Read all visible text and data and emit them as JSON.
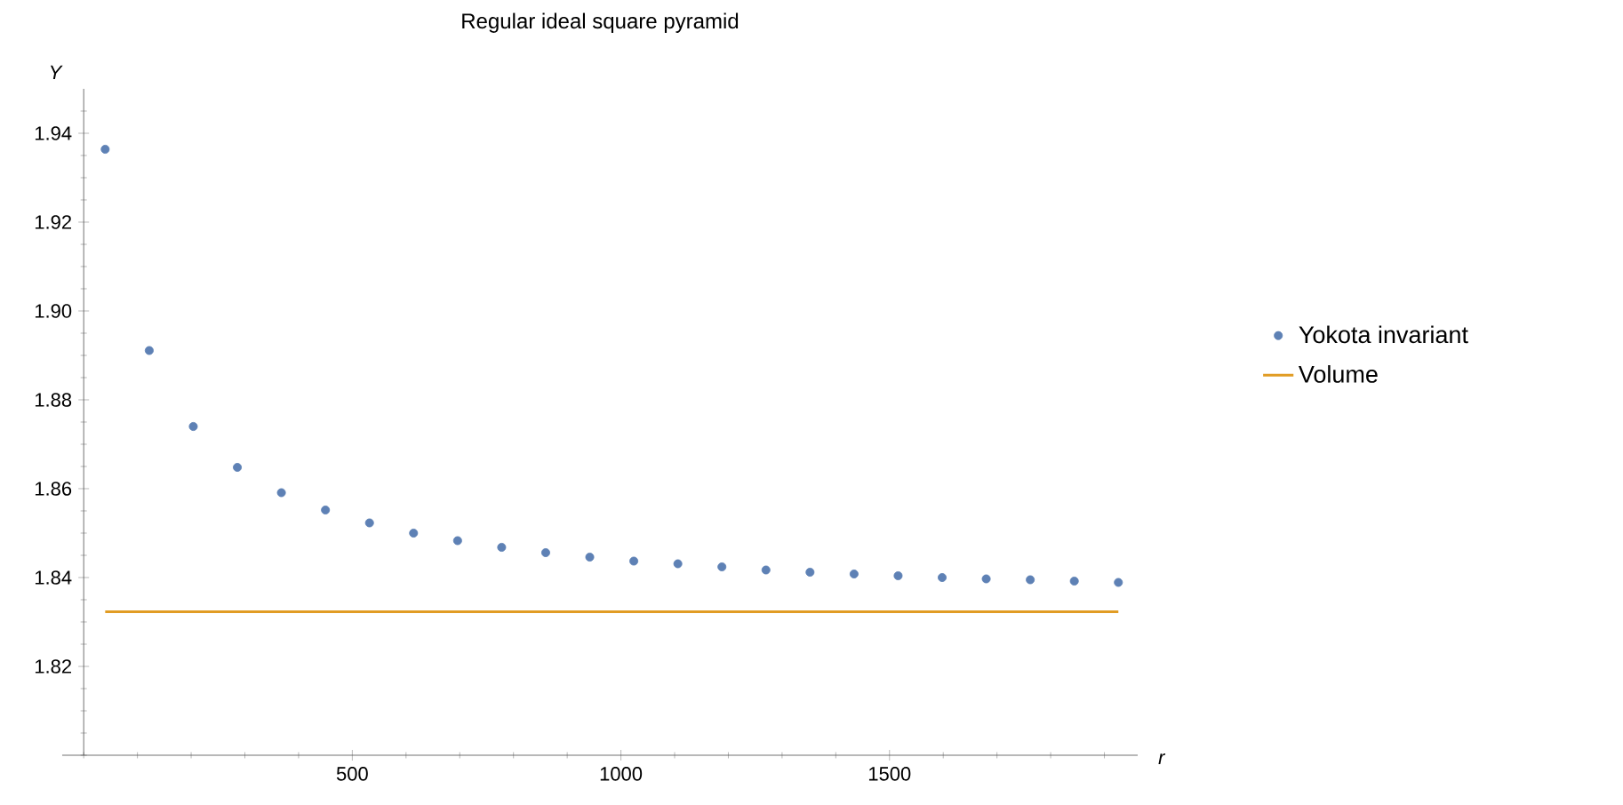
{
  "chart_data": {
    "type": "scatter",
    "title": "Regular ideal square pyramid",
    "xlabel": "r",
    "ylabel": "Y",
    "xlim": [
      -40,
      1962
    ],
    "ylim": [
      1.8,
      1.95
    ],
    "xticks": [
      500,
      1000,
      1500
    ],
    "yticks": [
      1.82,
      1.84,
      1.86,
      1.88,
      {
        "value": 1.9,
        "label": "1.90"
      },
      1.92,
      1.94
    ],
    "legend": "right",
    "series": [
      {
        "name": "Yokota invariant",
        "type": "scatter",
        "marker": "circle",
        "color": "#5e81b5",
        "x": [
          40,
          122,
          204,
          286,
          368,
          450,
          532,
          614,
          696,
          778,
          860,
          942,
          1024,
          1106,
          1188,
          1270,
          1352,
          1434,
          1516,
          1598,
          1680,
          1762,
          1844,
          1926
        ],
        "values": [
          1.9364,
          1.8911,
          1.874,
          1.8648,
          1.8591,
          1.8552,
          1.8523,
          1.85,
          1.8483,
          1.8468,
          1.8456,
          1.8446,
          1.8437,
          1.8431,
          1.8424,
          1.8417,
          1.8412,
          1.8408,
          1.8404,
          1.84,
          1.8397,
          1.8395,
          1.8392,
          1.8389
        ]
      },
      {
        "name": "Volume",
        "type": "line",
        "marker": "none",
        "color": "#e19c24",
        "x": [
          40,
          1926
        ],
        "values": [
          1.8323,
          1.8323
        ]
      }
    ]
  }
}
